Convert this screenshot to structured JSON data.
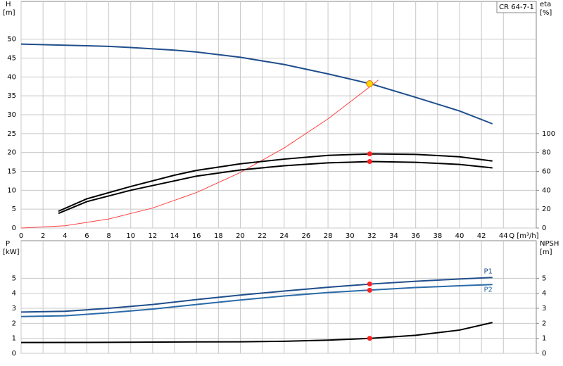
{
  "chart_data": [
    {
      "type": "line",
      "label": "CR 64-7-1",
      "ylabel": "H",
      "yunit": "[m]",
      "y2label": "eta",
      "y2unit": "[%]",
      "xlabel": "Q [m³/h]",
      "xlim": [
        0,
        47
      ],
      "xticks": [
        0,
        2,
        4,
        6,
        8,
        10,
        12,
        14,
        16,
        18,
        20,
        22,
        24,
        26,
        28,
        30,
        32,
        34,
        36,
        38,
        40,
        42,
        44
      ],
      "ylim": [
        0,
        60
      ],
      "yticks": [
        0,
        5,
        10,
        15,
        20,
        25,
        30,
        35,
        40,
        45,
        50
      ],
      "y2lim": [
        0,
        240
      ],
      "y2ticks": [
        0,
        20,
        40,
        60,
        80,
        100
      ],
      "grid": true,
      "series": [
        {
          "color": "#1f4e8c",
          "x": [
            0,
            4,
            8,
            10,
            14,
            16,
            20,
            24,
            28,
            32,
            36,
            40,
            43
          ],
          "values": [
            48.7,
            48.4,
            48.1,
            47.8,
            47.1,
            46.6,
            45.2,
            43.3,
            40.8,
            38.1,
            34.6,
            31.0,
            27.6
          ]
        },
        {
          "color": "#ff4040",
          "x": [
            0,
            4,
            8,
            12,
            16,
            20,
            24,
            28,
            32,
            32.6
          ],
          "values": [
            0,
            0.6,
            2.4,
            5.3,
            9.4,
            14.7,
            21.2,
            28.9,
            37.8,
            39.2
          ]
        },
        {
          "color": "#000000",
          "axis": "y2",
          "x": [
            3.4,
            6,
            10,
            14,
            16,
            20,
            24,
            28,
            32,
            36,
            40,
            43
          ],
          "values": [
            17.8,
            31,
            44,
            56,
            61,
            68,
            73,
            77,
            78.5,
            78,
            75.5,
            71
          ]
        },
        {
          "color": "#000000",
          "axis": "y2",
          "x": [
            3.4,
            6,
            10,
            14,
            16,
            20,
            24,
            28,
            32,
            36,
            40,
            43
          ],
          "values": [
            15.5,
            28,
            40,
            50,
            55,
            61.5,
            66,
            69,
            70.4,
            69.6,
            67.4,
            63.7
          ]
        }
      ],
      "markers": [
        {
          "x": 31.8,
          "y": 38.2,
          "color": "#ffd700"
        },
        {
          "x": 31.8,
          "y": 78.5,
          "axis": "y2",
          "color": "#ff2020"
        },
        {
          "x": 31.8,
          "y": 70.4,
          "axis": "y2",
          "color": "#ff2020"
        }
      ]
    },
    {
      "type": "line",
      "ylabel": "P",
      "yunit": "[kW]",
      "y2label": "NPSH",
      "y2unit": "[m]",
      "xlim": [
        0,
        47
      ],
      "xticks": [
        0,
        2,
        4,
        6,
        8,
        10,
        12,
        14,
        16,
        18,
        20,
        22,
        24,
        26,
        28,
        30,
        32,
        34,
        36,
        38,
        40,
        42,
        44
      ],
      "ylim": [
        0,
        7.5
      ],
      "yticks": [
        0,
        1,
        2,
        3,
        4,
        5
      ],
      "y2lim": [
        0,
        7.5
      ],
      "y2ticks": [
        0,
        1,
        2,
        3,
        4,
        5
      ],
      "grid": true,
      "series": [
        {
          "name": "P1",
          "color": "#1f4e8c",
          "x": [
            0,
            4,
            8,
            12,
            16,
            20,
            24,
            28,
            32,
            36,
            40,
            43
          ],
          "values": [
            2.75,
            2.8,
            3.0,
            3.25,
            3.58,
            3.88,
            4.15,
            4.4,
            4.62,
            4.8,
            4.95,
            5.05
          ]
        },
        {
          "name": "P2",
          "color": "#2a6aa8",
          "x": [
            0,
            4,
            8,
            12,
            16,
            20,
            24,
            28,
            32,
            36,
            40,
            43
          ],
          "values": [
            2.45,
            2.5,
            2.7,
            2.95,
            3.25,
            3.55,
            3.82,
            4.05,
            4.22,
            4.38,
            4.5,
            4.58
          ]
        },
        {
          "color": "#000000",
          "axis": "y2",
          "x": [
            0,
            8,
            16,
            20,
            24,
            28,
            32,
            36,
            40,
            43
          ],
          "values": [
            0.72,
            0.73,
            0.76,
            0.77,
            0.8,
            0.88,
            1.0,
            1.2,
            1.55,
            2.05
          ]
        }
      ],
      "markers": [
        {
          "x": 31.8,
          "y": 4.62,
          "color": "#ff2020"
        },
        {
          "x": 31.8,
          "y": 4.2,
          "color": "#ff2020"
        },
        {
          "x": 31.8,
          "y": 1.0,
          "axis": "y2",
          "color": "#ff2020"
        }
      ]
    }
  ]
}
